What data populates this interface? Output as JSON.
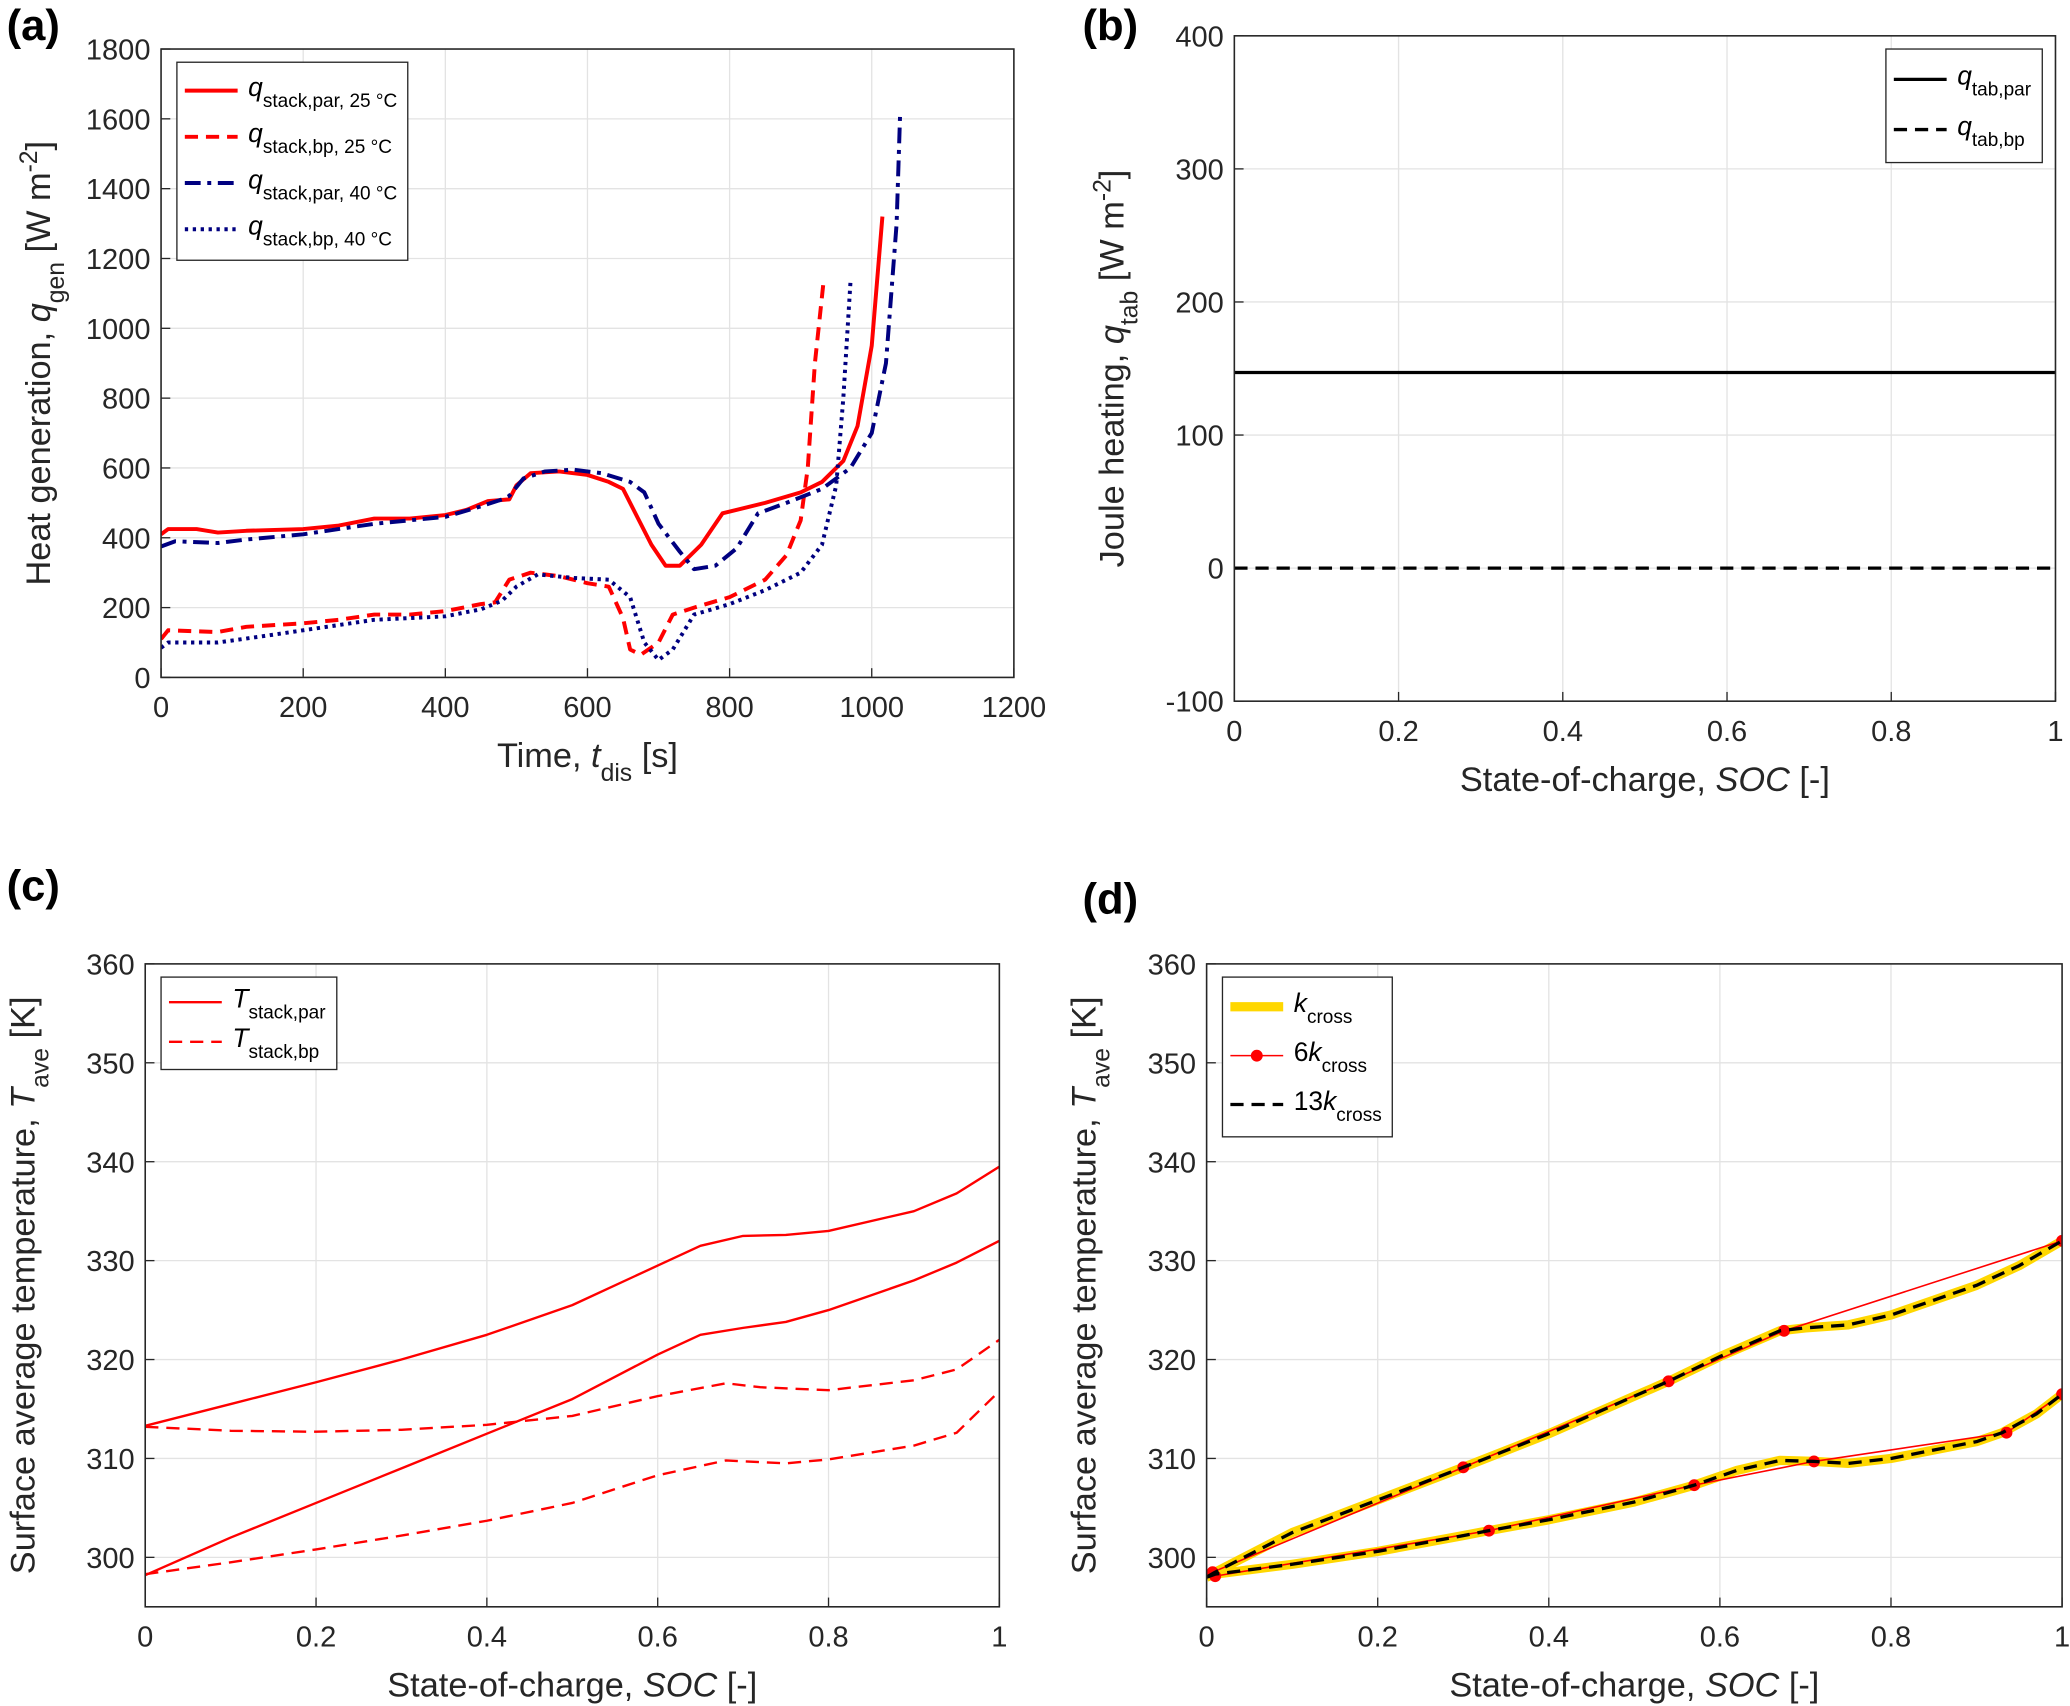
{
  "chart_data": [
    {
      "type": "line",
      "panel_label": "(a)",
      "xlabel": [
        {
          "text": "Time, "
        },
        {
          "text": "t",
          "style": "italic"
        },
        {
          "text": "dis",
          "style": "sub"
        },
        {
          "text": " [s]"
        }
      ],
      "ylabel": [
        {
          "text": "Heat generation, "
        },
        {
          "text": "q",
          "style": "italic"
        },
        {
          "text": "gen",
          "style": "sub"
        },
        {
          "text": " [W m"
        },
        {
          "text": "-2",
          "style": "sup"
        },
        {
          "text": "]"
        }
      ],
      "xlim": [
        0,
        1200
      ],
      "ylim": [
        0,
        1800
      ],
      "xticks": [
        0,
        200,
        400,
        600,
        800,
        1000,
        1200
      ],
      "yticks": [
        0,
        200,
        400,
        600,
        800,
        1000,
        1200,
        1400,
        1600,
        1800
      ],
      "grid": true,
      "legend": "upper left",
      "series": [
        {
          "name": [
            {
              "text": "q",
              "style": "italic"
            },
            {
              "text": "stack,par, 25 °C",
              "style": "sub"
            }
          ],
          "color": "#ff0000",
          "dash": "solid",
          "width": 3,
          "x": [
            0,
            10,
            50,
            80,
            120,
            200,
            250,
            300,
            350,
            400,
            430,
            460,
            490,
            500,
            520,
            560,
            600,
            630,
            650,
            670,
            690,
            710,
            730,
            760,
            790,
            850,
            900,
            930,
            960,
            980,
            1000,
            1015
          ],
          "values": [
            410,
            425,
            425,
            415,
            420,
            425,
            435,
            455,
            455,
            465,
            480,
            505,
            510,
            550,
            585,
            590,
            580,
            560,
            540,
            460,
            380,
            320,
            320,
            380,
            470,
            500,
            530,
            560,
            620,
            720,
            950,
            1320
          ]
        },
        {
          "name": [
            {
              "text": "q",
              "style": "italic"
            },
            {
              "text": "stack,bp, 25 °C",
              "style": "sub"
            }
          ],
          "color": "#ff0000",
          "dash": "dash",
          "width": 3,
          "x": [
            0,
            10,
            80,
            120,
            200,
            250,
            300,
            350,
            400,
            450,
            470,
            490,
            520,
            560,
            600,
            630,
            650,
            660,
            675,
            700,
            720,
            750,
            800,
            850,
            880,
            900,
            910,
            920,
            932
          ],
          "values": [
            110,
            135,
            130,
            145,
            155,
            165,
            180,
            180,
            190,
            210,
            215,
            280,
            300,
            290,
            270,
            260,
            170,
            80,
            65,
            100,
            180,
            200,
            230,
            280,
            350,
            450,
            600,
            900,
            1130
          ]
        },
        {
          "name": [
            {
              "text": "q",
              "style": "italic"
            },
            {
              "text": "stack,par, 40 °C",
              "style": "sub"
            }
          ],
          "color": "#000080",
          "dash": "dashdot",
          "width": 3,
          "x": [
            0,
            20,
            80,
            120,
            200,
            300,
            350,
            400,
            450,
            480,
            490,
            510,
            540,
            580,
            620,
            660,
            680,
            700,
            730,
            750,
            780,
            810,
            840,
            880,
            930,
            970,
            1000,
            1020,
            1035,
            1040
          ],
          "values": [
            375,
            390,
            385,
            395,
            410,
            440,
            450,
            460,
            490,
            510,
            520,
            570,
            590,
            595,
            585,
            560,
            530,
            440,
            360,
            310,
            320,
            370,
            470,
            500,
            540,
            600,
            700,
            900,
            1300,
            1620
          ]
        },
        {
          "name": [
            {
              "text": "q",
              "style": "italic"
            },
            {
              "text": "stack,bp, 40 °C",
              "style": "sub"
            }
          ],
          "color": "#000080",
          "dash": "dot",
          "width": 3,
          "x": [
            0,
            10,
            80,
            150,
            250,
            300,
            400,
            450,
            480,
            500,
            530,
            580,
            630,
            660,
            680,
            700,
            720,
            750,
            800,
            850,
            900,
            930,
            950,
            960,
            970
          ],
          "values": [
            85,
            100,
            100,
            120,
            150,
            165,
            175,
            195,
            220,
            260,
            295,
            285,
            280,
            230,
            100,
            50,
            80,
            180,
            210,
            250,
            300,
            380,
            550,
            800,
            1130
          ]
        }
      ]
    },
    {
      "type": "line",
      "panel_label": "(b)",
      "xlabel": [
        {
          "text": "State-of-charge, "
        },
        {
          "text": "SOC",
          "style": "italic"
        },
        {
          "text": " [-]"
        }
      ],
      "ylabel": [
        {
          "text": "Joule heating, "
        },
        {
          "text": "q",
          "style": "italic"
        },
        {
          "text": "tab",
          "style": "sub"
        },
        {
          "text": " [W m"
        },
        {
          "text": "-2",
          "style": "sup"
        },
        {
          "text": "]"
        }
      ],
      "xlim": [
        0,
        1
      ],
      "ylim": [
        -100,
        400
      ],
      "xticks": [
        0,
        0.2,
        0.4,
        0.6,
        0.8,
        1
      ],
      "yticks": [
        -100,
        0,
        100,
        200,
        300,
        400
      ],
      "grid": true,
      "legend": "upper right",
      "series": [
        {
          "name": [
            {
              "text": "q",
              "style": "italic"
            },
            {
              "text": "tab,par",
              "style": "sub"
            }
          ],
          "color": "#000000",
          "dash": "solid",
          "width": 2.5,
          "x": [
            0,
            1
          ],
          "values": [
            147,
            147
          ]
        },
        {
          "name": [
            {
              "text": "q",
              "style": "italic"
            },
            {
              "text": "tab,bp",
              "style": "sub"
            }
          ],
          "color": "#000000",
          "dash": "dash",
          "width": 2.5,
          "x": [
            0,
            1
          ],
          "values": [
            0,
            0
          ]
        }
      ]
    },
    {
      "type": "line",
      "panel_label": "(c)",
      "xlabel": [
        {
          "text": "State-of-charge, "
        },
        {
          "text": "SOC",
          "style": "italic"
        },
        {
          "text": " [-]"
        }
      ],
      "ylabel": [
        {
          "text": "Surface average temperature, "
        },
        {
          "text": "T",
          "style": "italic"
        },
        {
          "text": "ave",
          "style": "sub"
        },
        {
          "text": " [K]"
        }
      ],
      "xlim": [
        0,
        1
      ],
      "ylim": [
        295,
        360
      ],
      "xticks": [
        0,
        0.2,
        0.4,
        0.6,
        0.8,
        1
      ],
      "yticks": [
        300,
        310,
        320,
        330,
        340,
        350,
        360
      ],
      "grid": true,
      "legend": "upper left",
      "series": [
        {
          "name": [
            {
              "text": "T",
              "style": "italic"
            },
            {
              "text": "stack,par",
              "style": "sub"
            }
          ],
          "color": "#ff0000",
          "dash": "solid",
          "width": 1.8,
          "x": [
            0,
            0.1,
            0.2,
            0.3,
            0.4,
            0.5,
            0.6,
            0.65,
            0.7,
            0.75,
            0.8,
            0.9,
            0.95,
            1
          ],
          "values": [
            313.3,
            315.5,
            317.7,
            320,
            322.5,
            325.5,
            329.5,
            331.5,
            332.5,
            332.6,
            333,
            335,
            336.8,
            339.5
          ]
        },
        {
          "color": "#ff0000",
          "dash": "solid",
          "width": 1.8,
          "x": [
            0,
            0.1,
            0.2,
            0.3,
            0.4,
            0.5,
            0.6,
            0.65,
            0.7,
            0.75,
            0.8,
            0.9,
            0.95,
            1
          ],
          "values": [
            298.2,
            302,
            305.5,
            309,
            312.5,
            316,
            320.5,
            322.5,
            323.2,
            323.8,
            325,
            328,
            329.8,
            332
          ]
        },
        {
          "name": [
            {
              "text": "T",
              "style": "italic"
            },
            {
              "text": "stack,bp",
              "style": "sub"
            }
          ],
          "color": "#ff0000",
          "dash": "dash",
          "width": 1.8,
          "x": [
            0,
            0.1,
            0.2,
            0.3,
            0.4,
            0.5,
            0.6,
            0.68,
            0.72,
            0.8,
            0.9,
            0.95,
            1
          ],
          "values": [
            313.2,
            312.8,
            312.7,
            312.9,
            313.4,
            314.3,
            316.3,
            317.6,
            317.2,
            316.9,
            317.9,
            319,
            322
          ]
        },
        {
          "color": "#ff0000",
          "dash": "dash",
          "width": 1.8,
          "x": [
            0,
            0.1,
            0.2,
            0.3,
            0.4,
            0.5,
            0.6,
            0.68,
            0.75,
            0.8,
            0.9,
            0.95,
            1
          ],
          "values": [
            298.3,
            299.5,
            300.8,
            302.2,
            303.7,
            305.5,
            308.3,
            309.8,
            309.5,
            309.9,
            311.3,
            312.6,
            316.8
          ]
        }
      ]
    },
    {
      "type": "line",
      "panel_label": "(d)",
      "xlabel": [
        {
          "text": "State-of-charge, "
        },
        {
          "text": "SOC",
          "style": "italic"
        },
        {
          "text": " [-]"
        }
      ],
      "ylabel": [
        {
          "text": "Surface average temperature, "
        },
        {
          "text": "T",
          "style": "italic"
        },
        {
          "text": "ave",
          "style": "sub"
        },
        {
          "text": " [K]"
        }
      ],
      "xlim": [
        0,
        1
      ],
      "ylim": [
        295,
        360
      ],
      "xticks": [
        0,
        0.2,
        0.4,
        0.6,
        0.8,
        1
      ],
      "yticks": [
        300,
        310,
        320,
        330,
        340,
        350,
        360
      ],
      "grid": true,
      "legend": "upper left",
      "series": [
        {
          "name": [
            {
              "text": "k",
              "style": "italic"
            },
            {
              "text": "cross",
              "style": "sub"
            }
          ],
          "color": "#ffd700",
          "dash": "solid",
          "width": 7,
          "x": [
            0,
            0.01,
            0.1,
            0.2,
            0.3,
            0.4,
            0.5,
            0.54,
            0.6,
            0.67,
            0.7,
            0.75,
            0.8,
            0.9,
            0.95,
            1
          ],
          "values": [
            298,
            298.5,
            302.5,
            305.8,
            309.1,
            312.5,
            316.3,
            317.8,
            320.3,
            322.9,
            323.2,
            323.5,
            324.5,
            327.5,
            329.5,
            332
          ]
        },
        {
          "color": "#ffd700",
          "dash": "solid",
          "width": 7,
          "x": [
            0,
            0.01,
            0.1,
            0.2,
            0.3,
            0.33,
            0.4,
            0.5,
            0.57,
            0.62,
            0.67,
            0.71,
            0.75,
            0.8,
            0.9,
            0.93,
            0.97,
            1
          ],
          "values": [
            298,
            298.3,
            299.3,
            300.6,
            302.2,
            302.7,
            303.8,
            305.6,
            307.3,
            308.8,
            309.8,
            309.7,
            309.5,
            310,
            311.7,
            312.6,
            314.5,
            316.5
          ]
        },
        {
          "name": [
            {
              "text": "6"
            },
            {
              "text": "k",
              "style": "italic"
            },
            {
              "text": "cross",
              "style": "sub"
            }
          ],
          "color": "#ff0000",
          "dash": "solid",
          "width": 1.2,
          "marker": "circle",
          "x": [
            0.007,
            0.3,
            0.54,
            0.675,
            1
          ],
          "values": [
            298.5,
            309.1,
            317.8,
            322.9,
            332
          ]
        },
        {
          "color": "#ff0000",
          "dash": "solid",
          "width": 1.2,
          "marker": "circle",
          "x": [
            0.01,
            0.33,
            0.57,
            0.71,
            0.935,
            1
          ],
          "values": [
            298.1,
            302.7,
            307.3,
            309.7,
            312.6,
            316.5
          ]
        },
        {
          "name": [
            {
              "text": "13"
            },
            {
              "text": "k",
              "style": "italic"
            },
            {
              "text": "cross",
              "style": "sub"
            }
          ],
          "color": "#000000",
          "dash": "dash",
          "width": 2.5,
          "x": [
            0,
            0.01,
            0.1,
            0.2,
            0.3,
            0.4,
            0.5,
            0.54,
            0.6,
            0.67,
            0.7,
            0.75,
            0.8,
            0.9,
            0.95,
            1
          ],
          "values": [
            298,
            298.5,
            302.5,
            305.8,
            309.1,
            312.5,
            316.3,
            317.8,
            320.3,
            322.9,
            323.2,
            323.5,
            324.5,
            327.5,
            329.5,
            332
          ]
        },
        {
          "color": "#000000",
          "dash": "dash",
          "width": 2.5,
          "x": [
            0,
            0.01,
            0.1,
            0.2,
            0.3,
            0.33,
            0.4,
            0.5,
            0.57,
            0.62,
            0.67,
            0.71,
            0.75,
            0.8,
            0.9,
            0.93,
            0.97,
            1
          ],
          "values": [
            298,
            298.3,
            299.3,
            300.6,
            302.2,
            302.7,
            303.8,
            305.6,
            307.3,
            308.8,
            309.8,
            309.7,
            309.5,
            310,
            311.7,
            312.6,
            314.5,
            316.5
          ]
        }
      ]
    }
  ]
}
